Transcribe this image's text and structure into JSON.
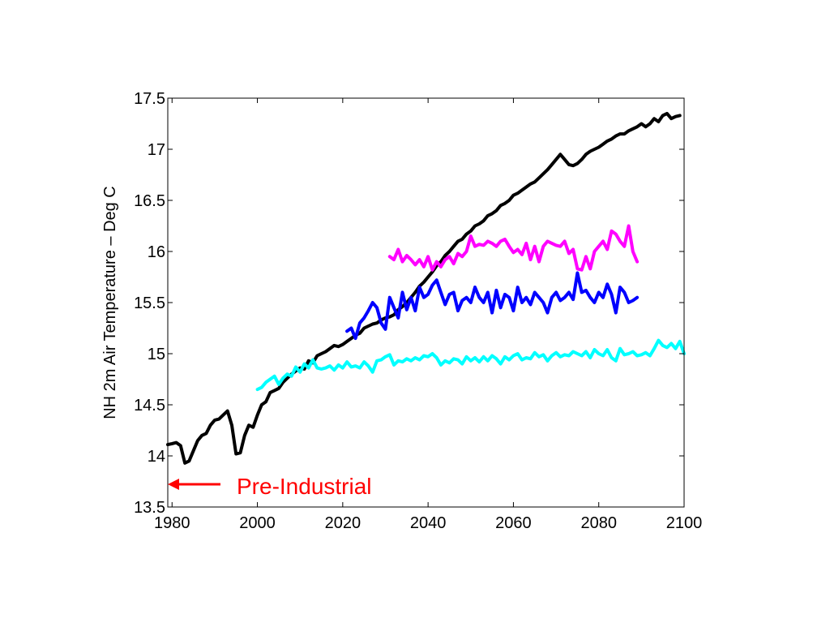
{
  "chart_data": {
    "type": "line",
    "title": "",
    "xlabel": "",
    "ylabel": "NH 2m Air Temperature – Deg C",
    "xlim": [
      1979,
      2100
    ],
    "ylim": [
      13.5,
      17.5
    ],
    "xticks": [
      1980,
      2000,
      2020,
      2040,
      2060,
      2080,
      2100
    ],
    "xtick_labels": [
      "1980",
      "2000",
      "2020",
      "2040",
      "2060",
      "2080",
      "2100"
    ],
    "yticks": [
      13.5,
      14,
      14.5,
      15,
      15.5,
      16,
      16.5,
      17,
      17.5
    ],
    "ytick_labels": [
      "13.5",
      "14",
      "14.5",
      "15",
      "15.5",
      "16",
      "16.5",
      "17",
      "17.5"
    ],
    "grid": false,
    "annotation": {
      "text": "Pre-Industrial",
      "color": "#ff0000",
      "y": 13.72
    },
    "series": [
      {
        "color": "#000000",
        "x": [
          1979,
          1980,
          1981,
          1982,
          1983,
          1984,
          1985,
          1986,
          1987,
          1988,
          1989,
          1990,
          1991,
          1992,
          1993,
          1994,
          1995,
          1996,
          1997,
          1998,
          1999,
          2000,
          2001,
          2002,
          2003,
          2004,
          2005,
          2006,
          2007,
          2008,
          2009,
          2010,
          2011,
          2012,
          2013,
          2014,
          2015,
          2016,
          2017,
          2018,
          2019,
          2020,
          2021,
          2022,
          2023,
          2024,
          2025,
          2026,
          2027,
          2028,
          2029,
          2030,
          2031,
          2032,
          2033,
          2034,
          2035,
          2036,
          2037,
          2038,
          2039,
          2040,
          2041,
          2042,
          2043,
          2044,
          2045,
          2046,
          2047,
          2048,
          2049,
          2050,
          2051,
          2052,
          2053,
          2054,
          2055,
          2056,
          2057,
          2058,
          2059,
          2060,
          2061,
          2062,
          2063,
          2064,
          2065,
          2066,
          2067,
          2068,
          2069,
          2070,
          2071,
          2072,
          2073,
          2074,
          2075,
          2076,
          2077,
          2078,
          2079,
          2080,
          2081,
          2082,
          2083,
          2084,
          2085,
          2086,
          2087,
          2088,
          2089,
          2090,
          2091,
          2092,
          2093,
          2094,
          2095,
          2096,
          2097,
          2098,
          2099
        ],
        "y": [
          14.11,
          14.12,
          14.13,
          14.1,
          13.93,
          13.95,
          14.05,
          14.15,
          14.2,
          14.22,
          14.3,
          14.35,
          14.36,
          14.4,
          14.44,
          14.3,
          14.02,
          14.03,
          14.2,
          14.3,
          14.28,
          14.4,
          14.5,
          14.53,
          14.62,
          14.64,
          14.66,
          14.72,
          14.76,
          14.8,
          14.83,
          14.86,
          14.85,
          14.93,
          14.91,
          14.98,
          15.0,
          15.02,
          15.05,
          15.08,
          15.07,
          15.09,
          15.12,
          15.15,
          15.18,
          15.2,
          15.25,
          15.27,
          15.29,
          15.3,
          15.33,
          15.35,
          15.36,
          15.38,
          15.43,
          15.46,
          15.5,
          15.55,
          15.6,
          15.66,
          15.7,
          15.75,
          15.8,
          15.86,
          15.9,
          15.96,
          16.0,
          16.05,
          16.1,
          16.12,
          16.17,
          16.2,
          16.25,
          16.27,
          16.3,
          16.35,
          16.37,
          16.4,
          16.45,
          16.47,
          16.5,
          16.55,
          16.57,
          16.6,
          16.63,
          16.66,
          16.68,
          16.72,
          16.76,
          16.8,
          16.85,
          16.9,
          16.95,
          16.9,
          16.85,
          16.84,
          16.86,
          16.9,
          16.95,
          16.98,
          17.0,
          17.02,
          17.05,
          17.08,
          17.1,
          17.13,
          17.15,
          17.15,
          17.18,
          17.2,
          17.22,
          17.25,
          17.22,
          17.25,
          17.3,
          17.27,
          17.33,
          17.35,
          17.3,
          17.32,
          17.33
        ]
      },
      {
        "color": "#00ffff",
        "x": [
          2000,
          2001,
          2002,
          2003,
          2004,
          2005,
          2006,
          2007,
          2008,
          2009,
          2010,
          2011,
          2012,
          2013,
          2014,
          2015,
          2016,
          2017,
          2018,
          2019,
          2020,
          2021,
          2022,
          2023,
          2024,
          2025,
          2026,
          2027,
          2028,
          2029,
          2030,
          2031,
          2032,
          2033,
          2034,
          2035,
          2036,
          2037,
          2038,
          2039,
          2040,
          2041,
          2042,
          2043,
          2044,
          2045,
          2046,
          2047,
          2048,
          2049,
          2050,
          2051,
          2052,
          2053,
          2054,
          2055,
          2056,
          2057,
          2058,
          2059,
          2060,
          2061,
          2062,
          2063,
          2064,
          2065,
          2066,
          2067,
          2068,
          2069,
          2070,
          2071,
          2072,
          2073,
          2074,
          2075,
          2076,
          2077,
          2078,
          2079,
          2080,
          2081,
          2082,
          2083,
          2084,
          2085,
          2086,
          2087,
          2088,
          2089,
          2090,
          2091,
          2092,
          2093,
          2094,
          2095,
          2096,
          2097,
          2098,
          2099,
          2100
        ],
        "y": [
          14.65,
          14.67,
          14.72,
          14.75,
          14.78,
          14.7,
          14.76,
          14.8,
          14.78,
          14.87,
          14.82,
          14.9,
          14.86,
          14.94,
          14.86,
          14.85,
          14.86,
          14.88,
          14.84,
          14.89,
          14.86,
          14.92,
          14.87,
          14.88,
          14.86,
          14.92,
          14.88,
          14.82,
          14.93,
          14.94,
          14.97,
          14.99,
          14.89,
          14.93,
          14.92,
          14.95,
          14.93,
          14.96,
          14.94,
          14.98,
          14.97,
          15.0,
          14.96,
          14.89,
          14.93,
          14.91,
          14.95,
          14.94,
          14.9,
          14.97,
          14.93,
          14.96,
          14.92,
          14.97,
          14.93,
          14.98,
          14.95,
          14.9,
          14.97,
          14.94,
          14.98,
          15.0,
          14.94,
          14.96,
          14.95,
          15.01,
          14.97,
          14.99,
          14.93,
          14.98,
          15.01,
          14.97,
          14.99,
          14.98,
          15.02,
          15.0,
          14.98,
          15.02,
          14.96,
          15.04,
          15.0,
          14.98,
          15.04,
          14.96,
          14.93,
          15.05,
          14.99,
          15.0,
          15.02,
          14.98,
          14.99,
          15.01,
          14.98,
          15.05,
          15.13,
          15.08,
          15.06,
          15.1,
          15.05,
          15.12,
          15.0
        ]
      },
      {
        "color": "#0000ff",
        "x": [
          2021,
          2022,
          2023,
          2024,
          2025,
          2026,
          2027,
          2028,
          2029,
          2030,
          2031,
          2032,
          2033,
          2034,
          2035,
          2036,
          2037,
          2038,
          2039,
          2040,
          2041,
          2042,
          2043,
          2044,
          2045,
          2046,
          2047,
          2048,
          2049,
          2050,
          2051,
          2052,
          2053,
          2054,
          2055,
          2056,
          2057,
          2058,
          2059,
          2060,
          2061,
          2062,
          2063,
          2064,
          2065,
          2066,
          2067,
          2068,
          2069,
          2070,
          2071,
          2072,
          2073,
          2074,
          2075,
          2076,
          2077,
          2078,
          2079,
          2080,
          2081,
          2082,
          2083,
          2084,
          2085,
          2086,
          2087,
          2088,
          2089
        ],
        "y": [
          15.22,
          15.25,
          15.15,
          15.3,
          15.35,
          15.42,
          15.5,
          15.45,
          15.3,
          15.24,
          15.55,
          15.45,
          15.35,
          15.6,
          15.43,
          15.55,
          15.42,
          15.65,
          15.55,
          15.58,
          15.67,
          15.72,
          15.6,
          15.48,
          15.58,
          15.6,
          15.42,
          15.52,
          15.55,
          15.5,
          15.65,
          15.55,
          15.5,
          15.6,
          15.4,
          15.62,
          15.45,
          15.58,
          15.55,
          15.42,
          15.65,
          15.5,
          15.55,
          15.48,
          15.6,
          15.55,
          15.5,
          15.4,
          15.55,
          15.6,
          15.52,
          15.55,
          15.6,
          15.53,
          15.79,
          15.6,
          15.62,
          15.55,
          15.5,
          15.6,
          15.55,
          15.68,
          15.58,
          15.4,
          15.65,
          15.6,
          15.5,
          15.52,
          15.55
        ]
      },
      {
        "color": "#ff00ff",
        "x": [
          2031,
          2032,
          2033,
          2034,
          2035,
          2036,
          2037,
          2038,
          2039,
          2040,
          2041,
          2042,
          2043,
          2044,
          2045,
          2046,
          2047,
          2048,
          2049,
          2050,
          2051,
          2052,
          2053,
          2054,
          2055,
          2056,
          2057,
          2058,
          2059,
          2060,
          2061,
          2062,
          2063,
          2064,
          2065,
          2066,
          2067,
          2068,
          2069,
          2070,
          2071,
          2072,
          2073,
          2074,
          2075,
          2076,
          2077,
          2078,
          2079,
          2080,
          2081,
          2082,
          2083,
          2084,
          2085,
          2086,
          2087,
          2088,
          2089
        ],
        "y": [
          15.95,
          15.92,
          16.02,
          15.9,
          15.96,
          15.92,
          15.87,
          15.92,
          15.85,
          15.95,
          15.82,
          15.9,
          15.85,
          15.92,
          15.95,
          15.88,
          15.98,
          15.95,
          16.0,
          16.15,
          16.05,
          16.07,
          16.06,
          16.1,
          16.08,
          16.05,
          16.1,
          16.12,
          16.05,
          15.99,
          16.02,
          15.97,
          16.08,
          15.92,
          16.05,
          15.9,
          16.05,
          16.1,
          16.08,
          16.06,
          16.05,
          16.1,
          15.98,
          16.02,
          15.83,
          15.82,
          15.95,
          15.83,
          16.0,
          16.05,
          16.1,
          16.02,
          16.2,
          16.17,
          16.1,
          16.05,
          16.25,
          16.0,
          15.9
        ]
      }
    ]
  }
}
